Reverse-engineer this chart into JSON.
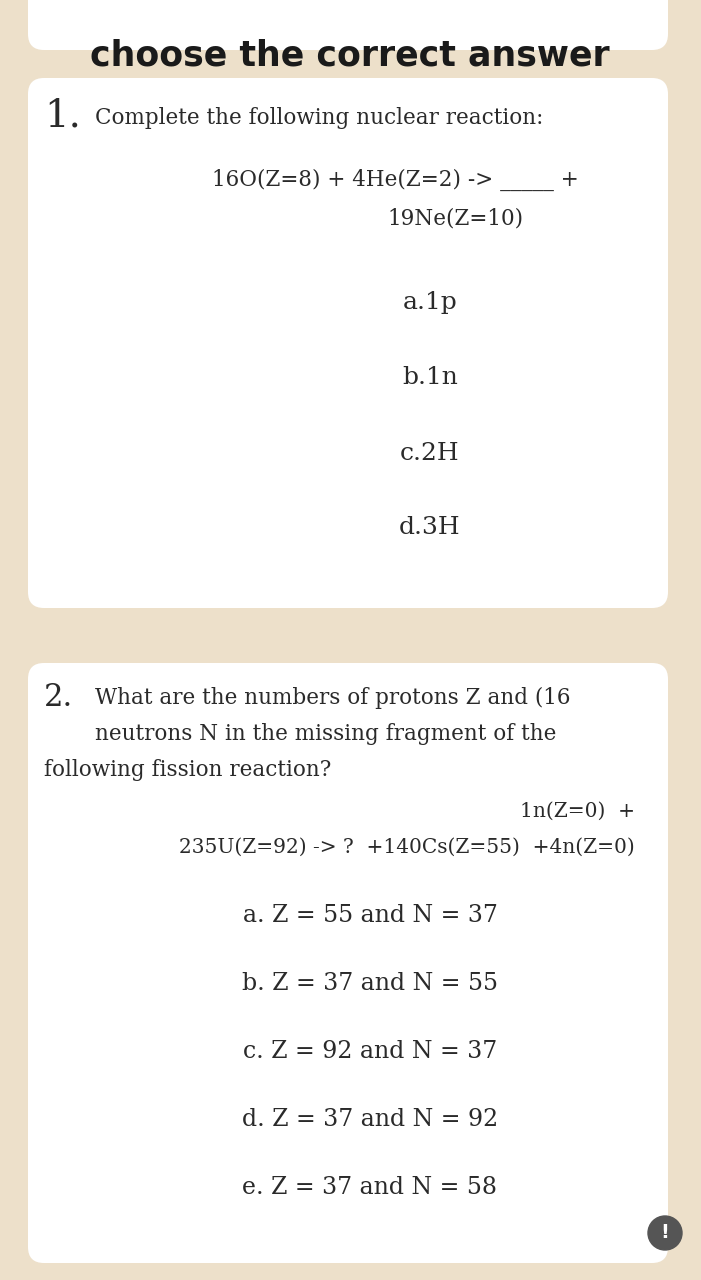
{
  "title": "choose the correct answer",
  "bg_color": "#ede0ca",
  "card_color": "#ffffff",
  "text_color": "#2a2a2a",
  "fig_width": 7.01,
  "fig_height": 12.8,
  "q1_number": "1.",
  "q1_intro": "Complete the following nuclear reaction:",
  "q1_reaction_line1": "16O(Z=8) + 4He(Z=2) -> _____ +",
  "q1_reaction_line2": "19Ne(Z=10)",
  "q1_choices": [
    "a.1p",
    "b.1n",
    "c.2H",
    "d.3H"
  ],
  "q2_number": "2.",
  "q2_intro_line1": "What are the numbers of protons Z and (16",
  "q2_intro_line2": "neutrons N in the missing fragment of the",
  "q2_intro_line3": "following fission reaction?",
  "q2_reaction_line1": "1n(Z=0)  +",
  "q2_reaction_line2": "235U(Z=92) -> ?  +140Cs(Z=55)  +4n(Z=0)",
  "q2_choices": [
    "a. Z = 55 and N = 37",
    "b. Z = 37 and N = 55",
    "c. Z = 92 and N = 37",
    "d. Z = 37 and N = 92",
    "e. Z = 37 and N = 58"
  ]
}
